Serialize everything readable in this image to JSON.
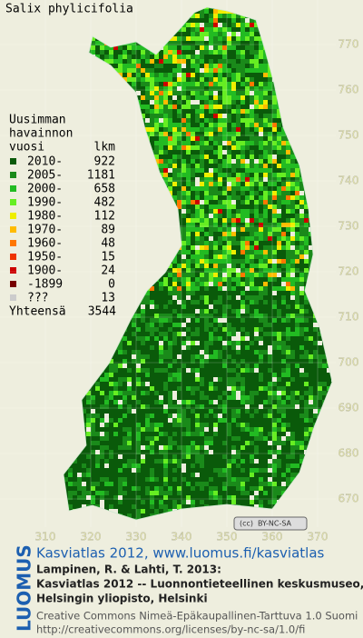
{
  "title": "Salix phylicifolia",
  "legend": {
    "header": [
      "Uusimman",
      "havainnon",
      "vuosi"
    ],
    "count_header": "lkm",
    "rows": [
      {
        "label": "2010-",
        "count": 922,
        "color": "#0a5a0a"
      },
      {
        "label": "2005-",
        "count": 1181,
        "color": "#1a8a1a"
      },
      {
        "label": "2000-",
        "count": 658,
        "color": "#22bb22"
      },
      {
        "label": "1990-",
        "count": 482,
        "color": "#66ee22"
      },
      {
        "label": "1980-",
        "count": 112,
        "color": "#eeee00"
      },
      {
        "label": "1970-",
        "count": 89,
        "color": "#ffbb00"
      },
      {
        "label": "1960-",
        "count": 48,
        "color": "#ff7700"
      },
      {
        "label": "1950-",
        "count": 15,
        "color": "#ee3300"
      },
      {
        "label": "1900-",
        "count": 24,
        "color": "#cc0000"
      },
      {
        "label": "-1899",
        "count": 0,
        "color": "#770000"
      },
      {
        "label": "???",
        "count": 13,
        "color": "#cccccc"
      }
    ],
    "total_label": "Yhteensä",
    "total": 3544
  },
  "map": {
    "xticks": [
      310,
      320,
      330,
      340,
      350,
      360,
      370
    ],
    "yticks": [
      670,
      680,
      690,
      700,
      710,
      720,
      730,
      740,
      750,
      760,
      770
    ]
  },
  "cc_badge": "BY-NC-SA",
  "footer": {
    "logo": "LUOMUS",
    "link": "Kasviatlas 2012, www.luomus.fi/kasviatlas",
    "citation": [
      "Lampinen, R. & Lahti, T. 2013:",
      "Kasviatlas 2012 -- Luonnontieteellinen keskusmuseo,",
      "Helsingin yliopisto, Helsinki"
    ],
    "license": [
      "Creative Commons Nimeä-Epäkaupallinen-Tarttuva 1.0 Suomi",
      "http://creativecommons.org/licenses/by-nc-sa/1.0/fi"
    ]
  }
}
